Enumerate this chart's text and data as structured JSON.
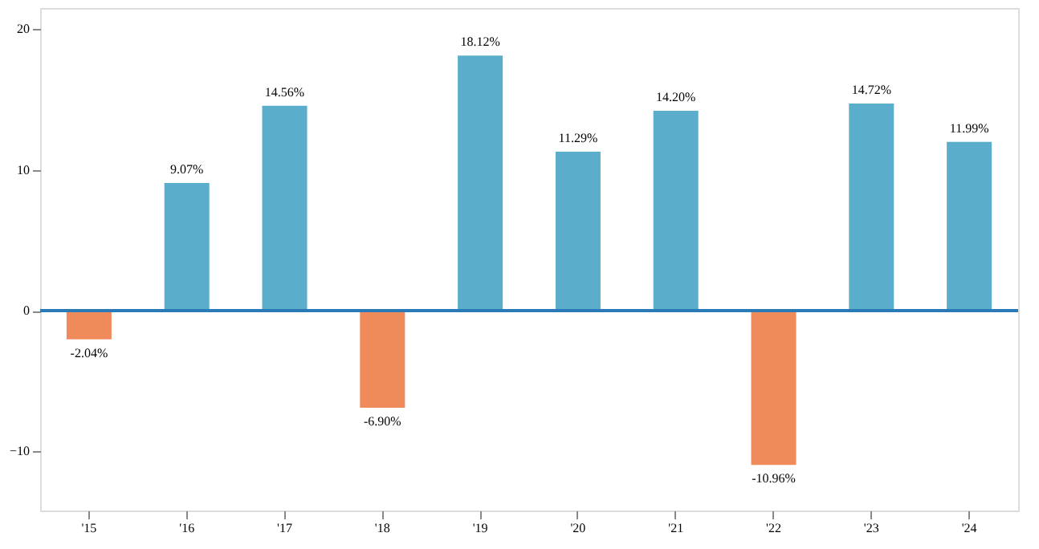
{
  "chart_data": {
    "type": "bar",
    "categories": [
      "'15",
      "'16",
      "'17",
      "'18",
      "'19",
      "'20",
      "'21",
      "'22",
      "'23",
      "'24"
    ],
    "values": [
      -2.04,
      9.07,
      14.56,
      -6.9,
      18.12,
      11.29,
      14.2,
      -10.96,
      14.72,
      11.99
    ],
    "colors": [
      "#ef8a5a",
      "#5aaecb",
      "#5aaecb",
      "#ef8a5a",
      "#5aaecb",
      "#5aaecb",
      "#5aaecb",
      "#ef8a5a",
      "#5aaecb",
      "#5aaecb"
    ],
    "value_labels": [
      "-2.04%",
      "9.07%",
      "14.56%",
      "-6.90%",
      "18.12%",
      "11.29%",
      "14.20%",
      "-10.96%",
      "14.72%",
      "11.99%"
    ],
    "ylim": [
      -14.2,
      21.5
    ],
    "yticks": [
      -10,
      0,
      10,
      20
    ],
    "ref_lines": [
      {
        "axis": "y",
        "value": 0,
        "color": "#2a7ab8"
      }
    ],
    "grid": false
  }
}
